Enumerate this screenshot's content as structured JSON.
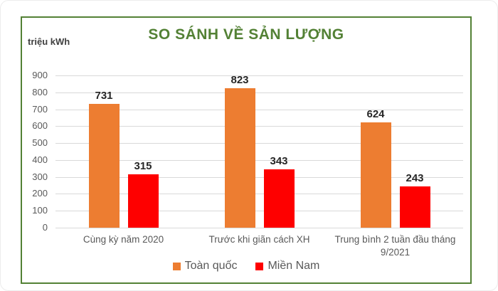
{
  "colors": {
    "title_green": "#538135",
    "frame_green": "#538135",
    "gridline_gray": "#d9d9d9",
    "axis_text_gray": "#595959",
    "value_label_dark": "#262626",
    "toan_quoc_orange": "#ED7D31",
    "mien_nam_red": "#FE0000"
  },
  "chart_data": {
    "type": "bar",
    "title": "SO SÁNH VỀ SẢN LƯỢNG",
    "ylabel": "triệu kWh",
    "xlabel": "",
    "categories": [
      "Cùng kỳ năm 2020",
      "Trước khi giãn cách XH",
      "Trung bình 2 tuần đầu tháng 9/2021"
    ],
    "series": [
      {
        "name": "Toàn quốc",
        "slug": "toan-quoc",
        "color": "#ED7D31",
        "values": [
          731,
          823,
          624
        ]
      },
      {
        "name": "Miền Nam",
        "slug": "mien-nam",
        "color": "#FE0000",
        "values": [
          315,
          343,
          243
        ]
      }
    ],
    "ylim": [
      0,
      900
    ],
    "ytick_step": 100,
    "grid": true,
    "legend_position": "bottom"
  }
}
